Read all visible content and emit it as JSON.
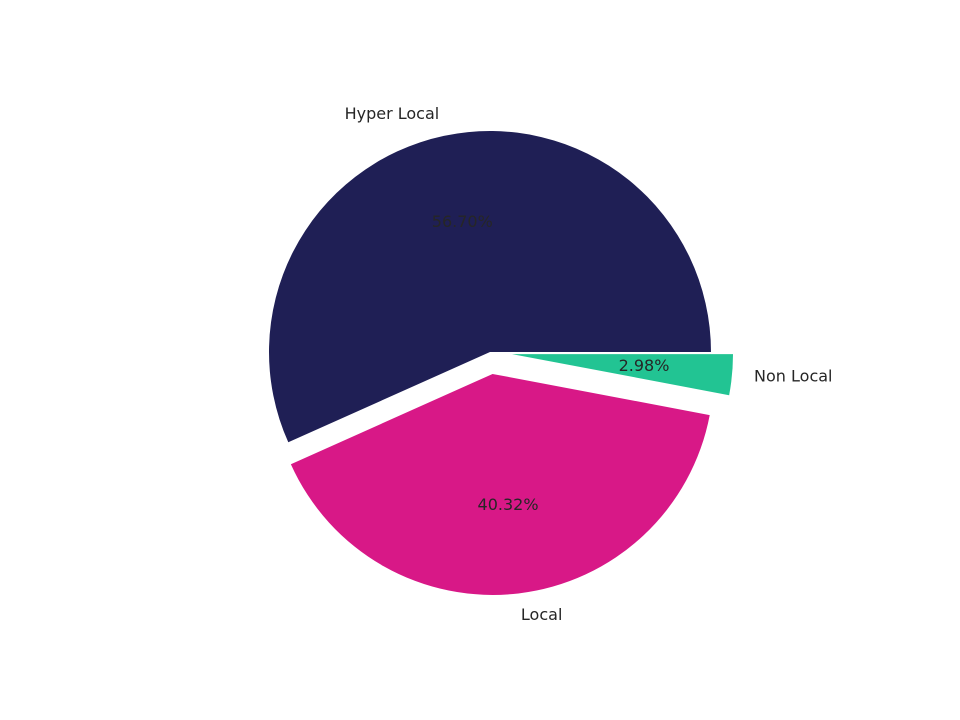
{
  "chart_data": {
    "type": "pie",
    "categories": [
      "Hyper Local",
      "Local",
      "Non Local"
    ],
    "values": [
      56.7,
      40.32,
      2.98
    ],
    "value_labels": [
      "56.70%",
      "40.32%",
      "2.98%"
    ],
    "colors": [
      "#1f1f55",
      "#d81887",
      "#22c493"
    ],
    "explode": [
      0,
      0.1,
      0.1
    ]
  }
}
